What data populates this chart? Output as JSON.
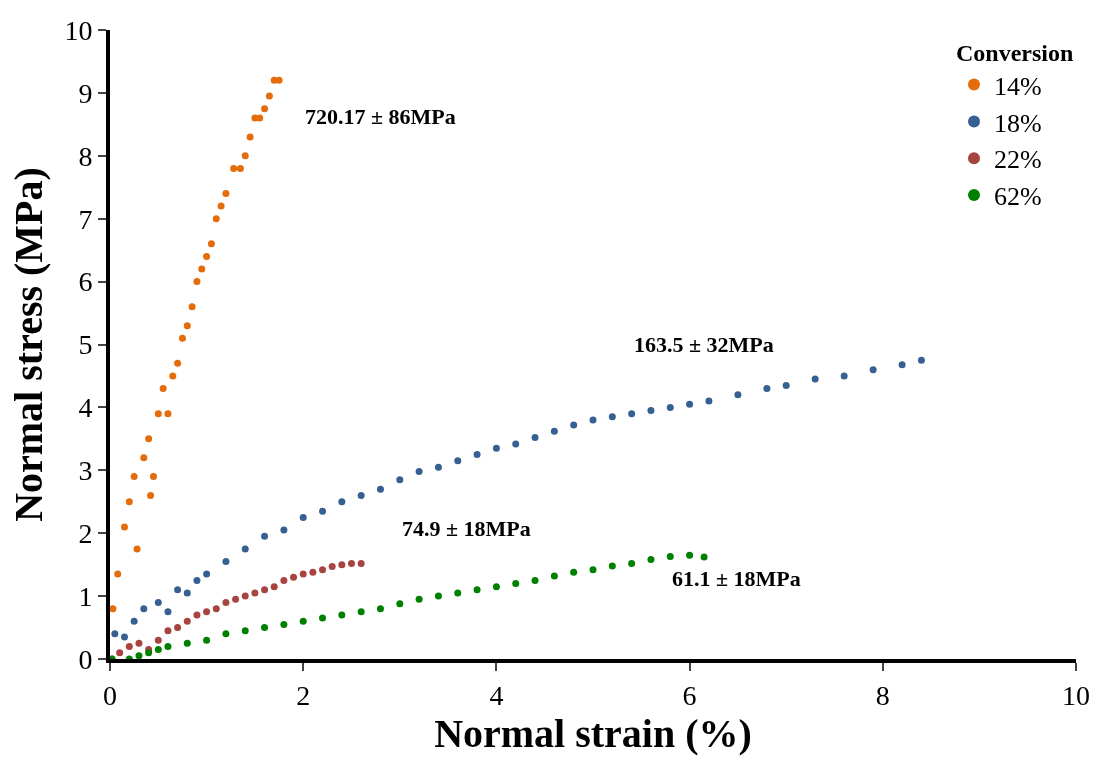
{
  "chart_data": {
    "type": "scatter",
    "xlabel": "Normal strain (%)",
    "ylabel": "Normal stress (MPa)",
    "legend_title": "Conversion",
    "legend": "top right",
    "marker": "circle",
    "xlim": [
      0,
      10
    ],
    "xticks": [
      0,
      2,
      4,
      6,
      8,
      10
    ],
    "ylim": [
      0,
      10
    ],
    "yticks": [
      0,
      1,
      2,
      3,
      4,
      5,
      6,
      7,
      8,
      9,
      10
    ],
    "series": [
      {
        "name": "14%",
        "color": "#e46c0a",
        "x": [
          0.03,
          0.08,
          0.15,
          0.2,
          0.25,
          0.28,
          0.35,
          0.4,
          0.42,
          0.45,
          0.5,
          0.55,
          0.6,
          0.65,
          0.7,
          0.75,
          0.8,
          0.85,
          0.9,
          0.95,
          1.0,
          1.05,
          1.1,
          1.15,
          1.2,
          1.28,
          1.35,
          1.4,
          1.45,
          1.5,
          1.55,
          1.6,
          1.65,
          1.7,
          1.75
        ],
        "values": [
          0.8,
          1.35,
          2.1,
          2.5,
          2.9,
          1.75,
          3.2,
          3.5,
          2.6,
          2.9,
          3.9,
          4.3,
          3.9,
          4.5,
          4.7,
          5.1,
          5.3,
          5.6,
          6.0,
          6.2,
          6.4,
          6.6,
          7.0,
          7.2,
          7.4,
          7.8,
          7.8,
          8.0,
          8.3,
          8.6,
          8.6,
          8.75,
          8.95,
          9.2,
          9.2
        ]
      },
      {
        "name": "18%",
        "color": "#376092",
        "x": [
          0.05,
          0.15,
          0.25,
          0.35,
          0.5,
          0.6,
          0.7,
          0.8,
          0.9,
          1.0,
          1.2,
          1.4,
          1.6,
          1.8,
          2.0,
          2.2,
          2.4,
          2.6,
          2.8,
          3.0,
          3.2,
          3.4,
          3.6,
          3.8,
          4.0,
          4.2,
          4.4,
          4.6,
          4.8,
          5.0,
          5.2,
          5.4,
          5.6,
          5.8,
          6.0,
          6.2,
          6.5,
          6.8,
          7.0,
          7.3,
          7.6,
          7.9,
          8.2,
          8.4
        ],
        "values": [
          0.4,
          0.35,
          0.6,
          0.8,
          0.9,
          0.75,
          1.1,
          1.05,
          1.25,
          1.35,
          1.55,
          1.75,
          1.95,
          2.05,
          2.25,
          2.35,
          2.5,
          2.6,
          2.7,
          2.85,
          2.98,
          3.05,
          3.15,
          3.25,
          3.35,
          3.42,
          3.52,
          3.62,
          3.72,
          3.8,
          3.85,
          3.9,
          3.95,
          4.0,
          4.05,
          4.1,
          4.2,
          4.3,
          4.35,
          4.45,
          4.5,
          4.6,
          4.68,
          4.75
        ]
      },
      {
        "name": "22%",
        "color": "#a84440",
        "x": [
          0.02,
          0.1,
          0.2,
          0.3,
          0.4,
          0.5,
          0.6,
          0.7,
          0.8,
          0.9,
          1.0,
          1.1,
          1.2,
          1.3,
          1.4,
          1.5,
          1.6,
          1.7,
          1.8,
          1.9,
          2.0,
          2.1,
          2.2,
          2.3,
          2.4,
          2.5,
          2.6
        ],
        "values": [
          0,
          0.1,
          0.2,
          0.25,
          0.15,
          0.3,
          0.45,
          0.5,
          0.6,
          0.7,
          0.75,
          0.8,
          0.9,
          0.95,
          1.0,
          1.05,
          1.1,
          1.15,
          1.25,
          1.3,
          1.35,
          1.38,
          1.42,
          1.47,
          1.5,
          1.52,
          1.52
        ]
      },
      {
        "name": "62%",
        "color": "#008000",
        "x": [
          0.02,
          0.2,
          0.3,
          0.4,
          0.5,
          0.6,
          0.8,
          1.0,
          1.2,
          1.4,
          1.6,
          1.8,
          2.0,
          2.2,
          2.4,
          2.6,
          2.8,
          3.0,
          3.2,
          3.4,
          3.6,
          3.8,
          4.0,
          4.2,
          4.4,
          4.6,
          4.8,
          5.0,
          5.2,
          5.4,
          5.6,
          5.8,
          6.0,
          6.15
        ],
        "values": [
          0,
          0,
          0.05,
          0.1,
          0.15,
          0.2,
          0.25,
          0.3,
          0.4,
          0.45,
          0.5,
          0.55,
          0.6,
          0.65,
          0.7,
          0.75,
          0.8,
          0.88,
          0.95,
          1.0,
          1.05,
          1.1,
          1.15,
          1.2,
          1.25,
          1.32,
          1.38,
          1.42,
          1.48,
          1.52,
          1.58,
          1.63,
          1.65,
          1.62
        ]
      }
    ],
    "annotations": [
      "720.17 ± 86MPa",
      "163.5 ± 32MPa",
      "74.9 ± 18MPa",
      "61.1 ± 18MPa"
    ]
  }
}
